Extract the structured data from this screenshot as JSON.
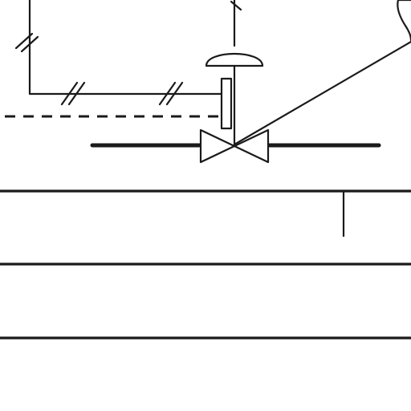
{
  "diagram": {
    "kind": "piping-instrumentation-schematic",
    "colors": {
      "ink": "#1a1a1a",
      "background": "#ffffff"
    },
    "elements": [
      "pneumatic-signal-line",
      "electrical-signal-line",
      "diaphragm-actuator",
      "positioner-box",
      "control-valve",
      "process-pipe",
      "leader-line",
      "instrument-bubble",
      "horizontal-rails"
    ]
  }
}
